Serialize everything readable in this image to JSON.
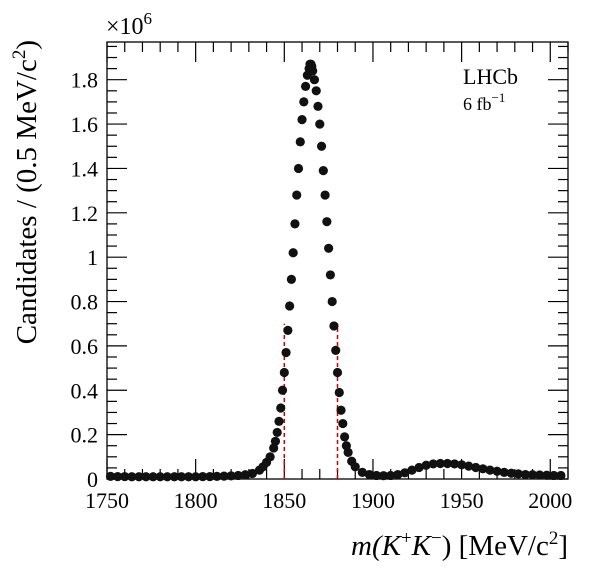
{
  "chart_data": {
    "type": "scatter",
    "title": "",
    "xlabel_parts": {
      "pre": "m(K",
      "sup1": "+",
      "mid": "K",
      "sup2": "−",
      "post": ") [MeV/c",
      "sup3": "2",
      "end": "]"
    },
    "ylabel_parts": {
      "pre": "Candidates / (0.5 MeV/c",
      "sup": "2",
      "end": ")"
    },
    "y_multiplier": {
      "base": "×10",
      "exp": "6"
    },
    "xlim": [
      1750,
      2010
    ],
    "ylim": [
      0,
      1.97
    ],
    "x_ticks": [
      1750,
      1800,
      1850,
      1900,
      1950,
      2000
    ],
    "y_ticks": [
      0,
      0.2,
      0.4,
      0.6,
      0.8,
      1,
      1.2,
      1.4,
      1.6,
      1.8
    ],
    "y_tick_labels": [
      "0",
      "0.2",
      "0.4",
      "0.6",
      "0.8",
      "1",
      "1.2",
      "1.4",
      "1.6",
      "1.8"
    ],
    "x_tick_labels": [
      "1750",
      "1800",
      "1850",
      "1900",
      "1950",
      "2000"
    ],
    "grid": false,
    "annotations": {
      "experiment": "LHCb",
      "lumi_pre": "6 fb",
      "lumi_sup": "−1"
    },
    "signal_window": {
      "x": [
        1850,
        1880
      ],
      "height": 0.7,
      "color": "#cc0000"
    },
    "marker_color": "#111111",
    "series": [
      {
        "x": [
          1752,
          1756,
          1760,
          1764,
          1768,
          1772,
          1776,
          1780,
          1784,
          1788,
          1792,
          1796,
          1800,
          1804,
          1808,
          1812,
          1816,
          1820,
          1824,
          1828,
          1832,
          1836,
          1838,
          1840,
          1842,
          1844,
          1845,
          1846,
          1847,
          1848,
          1849,
          1850,
          1851,
          1852,
          1853,
          1854,
          1855,
          1856,
          1857,
          1858,
          1859,
          1860,
          1861,
          1862,
          1863,
          1864,
          1864.5,
          1865,
          1865.5,
          1866,
          1867,
          1868,
          1869,
          1870,
          1871,
          1872,
          1873,
          1874,
          1875,
          1876,
          1877,
          1878,
          1879,
          1880,
          1881,
          1882,
          1883,
          1884,
          1885,
          1886,
          1888,
          1890,
          1894,
          1898,
          1902,
          1906,
          1910,
          1914,
          1918,
          1922,
          1926,
          1930,
          1934,
          1938,
          1942,
          1946,
          1950,
          1954,
          1958,
          1962,
          1966,
          1970,
          1974,
          1978,
          1982,
          1986,
          1990,
          1994,
          1998,
          2002,
          2006
        ],
        "y": [
          0.012,
          0.011,
          0.011,
          0.01,
          0.01,
          0.01,
          0.01,
          0.01,
          0.01,
          0.01,
          0.01,
          0.01,
          0.01,
          0.011,
          0.011,
          0.012,
          0.013,
          0.014,
          0.016,
          0.019,
          0.025,
          0.04,
          0.055,
          0.075,
          0.1,
          0.14,
          0.17,
          0.21,
          0.26,
          0.32,
          0.4,
          0.48,
          0.57,
          0.67,
          0.78,
          0.9,
          1.02,
          1.15,
          1.28,
          1.4,
          1.52,
          1.62,
          1.7,
          1.77,
          1.82,
          1.85,
          1.87,
          1.87,
          1.86,
          1.84,
          1.8,
          1.75,
          1.68,
          1.6,
          1.5,
          1.39,
          1.28,
          1.16,
          1.04,
          0.92,
          0.8,
          0.69,
          0.58,
          0.48,
          0.39,
          0.31,
          0.25,
          0.19,
          0.15,
          0.12,
          0.08,
          0.055,
          0.03,
          0.02,
          0.016,
          0.015,
          0.016,
          0.02,
          0.028,
          0.04,
          0.052,
          0.062,
          0.068,
          0.07,
          0.07,
          0.068,
          0.064,
          0.058,
          0.052,
          0.046,
          0.04,
          0.035,
          0.03,
          0.026,
          0.023,
          0.02,
          0.019,
          0.018,
          0.017,
          0.016,
          0.016
        ]
      }
    ]
  }
}
